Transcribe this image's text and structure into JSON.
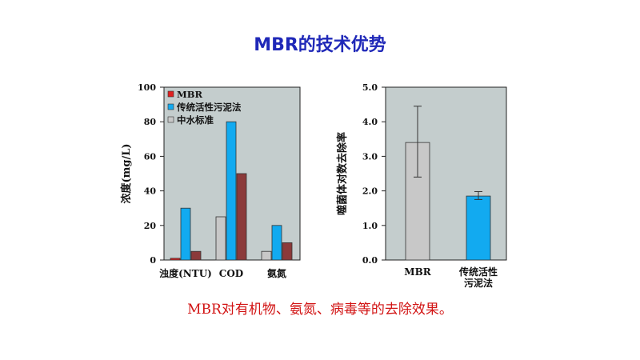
{
  "slide": {
    "title": "MBR的技术优势",
    "caption": "MBR对有机物、氨氮、病毒等的去除效果。"
  },
  "colors": {
    "title": "#1f28b8",
    "caption": "#d21414",
    "plot_bg": "#c4cdcd",
    "mbr_red": "#e02020",
    "traditional_blue": "#12aaf0",
    "reclaimed_gray": "#c8c8c8",
    "dark_red": "#8b3a3a"
  },
  "chart_data": [
    {
      "type": "bar",
      "ylabel": "浓度(mg/L)",
      "xlabel": "",
      "ylim": [
        0,
        100
      ],
      "yticks": [
        "0",
        "20",
        "40",
        "60",
        "80",
        "100"
      ],
      "categories": [
        "浊度(NTU)",
        "COD",
        "氨氮"
      ],
      "legend_position": "top-left",
      "legend": [
        {
          "label": "MBR",
          "color": "#e02020"
        },
        {
          "label": "传统活性污泥法",
          "color": "#12aaf0"
        },
        {
          "label": "中水标准",
          "color": "#c8c8c8"
        }
      ],
      "series": [
        {
          "color": "#e02020",
          "values": [
            1,
            null,
            null
          ]
        },
        {
          "color": "#c8c8c8",
          "values": [
            null,
            25,
            5
          ]
        },
        {
          "color": "#12aaf0",
          "values": [
            30,
            80,
            20
          ]
        },
        {
          "color": "#8b3a3a",
          "values": [
            5,
            50,
            10
          ]
        }
      ]
    },
    {
      "type": "bar",
      "ylabel": "噬菌体对数去除率",
      "xlabel": "",
      "ylim": [
        0,
        5
      ],
      "yticks": [
        "0.0",
        "1.0",
        "2.0",
        "3.0",
        "4.0",
        "5.0"
      ],
      "categories": [
        "MBR",
        "传统活性\n污泥法"
      ],
      "values": [
        3.4,
        1.85
      ],
      "error": [
        [
          2.4,
          4.45
        ],
        [
          1.75,
          1.98
        ]
      ],
      "colors": [
        "#c8c8c8",
        "#12aaf0"
      ]
    }
  ]
}
